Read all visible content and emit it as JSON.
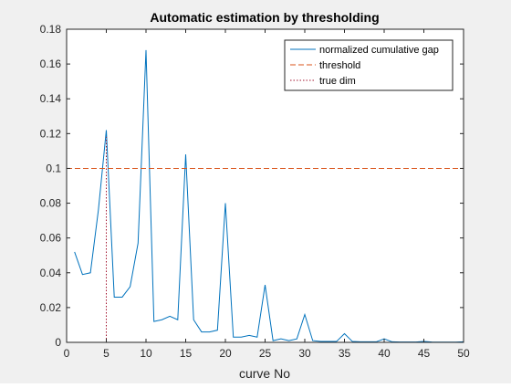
{
  "chart_data": {
    "type": "line",
    "title": "Automatic estimation by thresholding",
    "xlabel": "curve No",
    "ylabel": "",
    "xlim": [
      0,
      50
    ],
    "ylim": [
      0,
      0.18
    ],
    "xticks": [
      0,
      5,
      10,
      15,
      20,
      25,
      30,
      35,
      40,
      45,
      50
    ],
    "yticks": [
      0,
      0.02,
      0.04,
      0.06,
      0.08,
      0.1,
      0.12,
      0.14,
      0.16,
      0.18
    ],
    "xtick_labels": [
      "0",
      "5",
      "10",
      "15",
      "20",
      "25",
      "30",
      "35",
      "40",
      "45",
      "50"
    ],
    "ytick_labels": [
      "0",
      "0.02",
      "0.04",
      "0.06",
      "0.08",
      "0.1",
      "0.12",
      "0.14",
      "0.16",
      "0.18"
    ],
    "grid": false,
    "legend_position": "top-right",
    "series": [
      {
        "name": "normalized cumulative gap",
        "style": "solid",
        "color": "#0072bd",
        "x": [
          1,
          2,
          3,
          4,
          5,
          6,
          7,
          8,
          9,
          10,
          11,
          12,
          13,
          14,
          15,
          16,
          17,
          18,
          19,
          20,
          21,
          22,
          23,
          24,
          25,
          26,
          27,
          28,
          29,
          30,
          31,
          32,
          33,
          34,
          35,
          36,
          37,
          38,
          39,
          40,
          41,
          42,
          43,
          44,
          45,
          46,
          47,
          48,
          49,
          50
        ],
        "values": [
          0.052,
          0.039,
          0.04,
          0.076,
          0.122,
          0.026,
          0.026,
          0.032,
          0.057,
          0.168,
          0.012,
          0.013,
          0.015,
          0.013,
          0.108,
          0.013,
          0.006,
          0.006,
          0.007,
          0.08,
          0.003,
          0.003,
          0.004,
          0.003,
          0.033,
          0.001,
          0.002,
          0.001,
          0.002,
          0.016,
          0.001,
          0.0005,
          0.0005,
          0.0005,
          0.005,
          0.0005,
          0.0003,
          0.0003,
          0.0003,
          0.002,
          0.0003,
          0.0002,
          0.0002,
          0.0002,
          0.0005,
          0.0002,
          0.0001,
          0.0001,
          0.0001,
          0.0003
        ]
      },
      {
        "name": "threshold",
        "style": "dashed",
        "color": "#d95319",
        "x": [
          0,
          50
        ],
        "values": [
          0.1,
          0.1
        ]
      },
      {
        "name": "true dim",
        "style": "dotted",
        "color": "#a2142f",
        "x": [
          5,
          5
        ],
        "values": [
          0,
          0.118
        ]
      }
    ]
  }
}
